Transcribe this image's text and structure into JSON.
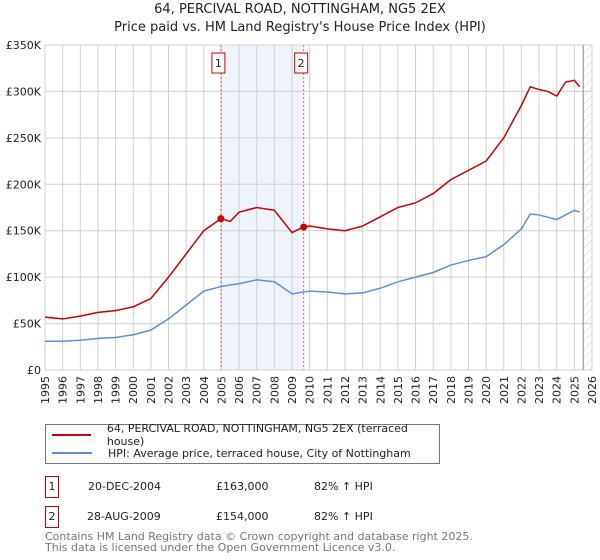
{
  "chart_data": {
    "type": "line",
    "title": "64, PERCIVAL ROAD, NOTTINGHAM, NG5 2EX",
    "subtitle": "Price paid vs. HM Land Registry's House Price Index (HPI)",
    "xlim": [
      1995,
      2026
    ],
    "ylim": [
      0,
      350000
    ],
    "yticks": [
      {
        "v": 0,
        "label": "£0"
      },
      {
        "v": 50000,
        "label": "£50K"
      },
      {
        "v": 100000,
        "label": "£100K"
      },
      {
        "v": 150000,
        "label": "£150K"
      },
      {
        "v": 200000,
        "label": "£200K"
      },
      {
        "v": 250000,
        "label": "£250K"
      },
      {
        "v": 300000,
        "label": "£300K"
      },
      {
        "v": 350000,
        "label": "£350K"
      }
    ],
    "xticks": [
      "1995",
      "1996",
      "1997",
      "1998",
      "1999",
      "2000",
      "2001",
      "2002",
      "2003",
      "2004",
      "2005",
      "2006",
      "2007",
      "2008",
      "2009",
      "2010",
      "2011",
      "2012",
      "2013",
      "2014",
      "2015",
      "2016",
      "2017",
      "2018",
      "2019",
      "2020",
      "2021",
      "2022",
      "2023",
      "2024",
      "2025",
      "2026"
    ],
    "grid": true,
    "shaded_period": [
      2004.97,
      2009.66
    ],
    "future_hatch_from": 2025.5,
    "series": [
      {
        "name": "64, PERCIVAL ROAD, NOTTINGHAM, NG5 2EX (terraced house)",
        "color": "#cc0000",
        "x": [
          1995,
          1996,
          1997,
          1998,
          1999,
          2000,
          2001,
          2002,
          2003,
          2004,
          2004.97,
          2005.5,
          2006,
          2007,
          2008,
          2009,
          2009.66,
          2010,
          2011,
          2012,
          2013,
          2014,
          2015,
          2016,
          2017,
          2018,
          2019,
          2020,
          2021,
          2022,
          2022.5,
          2023,
          2023.5,
          2024,
          2024.5,
          2025,
          2025.3
        ],
        "y": [
          57000,
          55000,
          58000,
          62000,
          64000,
          68000,
          77000,
          100000,
          125000,
          150000,
          163000,
          160000,
          170000,
          175000,
          172000,
          148000,
          154000,
          155000,
          152000,
          150000,
          155000,
          165000,
          175000,
          180000,
          190000,
          205000,
          215000,
          225000,
          250000,
          285000,
          305000,
          302000,
          300000,
          295000,
          310000,
          312000,
          305000
        ]
      },
      {
        "name": "HPI: Average price, terraced house, City of Nottingham",
        "color": "#5b8fd6",
        "x": [
          1995,
          1996,
          1997,
          1998,
          1999,
          2000,
          2001,
          2002,
          2003,
          2004,
          2005,
          2006,
          2007,
          2008,
          2009,
          2010,
          2011,
          2012,
          2013,
          2014,
          2015,
          2016,
          2017,
          2018,
          2019,
          2020,
          2021,
          2022,
          2022.5,
          2023,
          2024,
          2025,
          2025.3
        ],
        "y": [
          31000,
          31000,
          32000,
          34000,
          35000,
          38000,
          43000,
          55000,
          70000,
          85000,
          90000,
          93000,
          97000,
          95000,
          82000,
          85000,
          84000,
          82000,
          83000,
          88000,
          95000,
          100000,
          105000,
          113000,
          118000,
          122000,
          135000,
          152000,
          168000,
          167000,
          162000,
          172000,
          170000
        ]
      }
    ],
    "markers": [
      {
        "label": "1",
        "x": 2004.97,
        "y": 163000
      },
      {
        "label": "2",
        "x": 2009.66,
        "y": 154000
      }
    ]
  },
  "sales": [
    {
      "num": "1",
      "date": "20-DEC-2004",
      "price": "£163,000",
      "hpi": "82% ↑ HPI"
    },
    {
      "num": "2",
      "date": "28-AUG-2009",
      "price": "£154,000",
      "hpi": "82% ↑ HPI"
    }
  ],
  "footer": {
    "line1": "Contains HM Land Registry data © Crown copyright and database right 2025.",
    "line2": "This data is licensed under the Open Government Licence v3.0."
  }
}
